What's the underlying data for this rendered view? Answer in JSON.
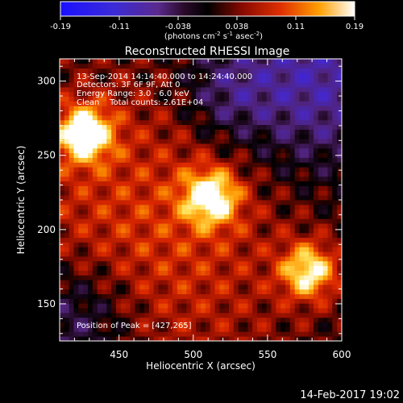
{
  "colors": {
    "background": "#000000",
    "foreground": "#ffffff"
  },
  "colorbar": {
    "ticks": [
      "-0.19",
      "-0.11",
      "-0.038",
      "0.038",
      "0.11",
      "0.19"
    ],
    "unit_label": "(photons cm",
    "unit_sup1": "-2",
    "unit_mid": " s",
    "unit_sup2": "-1",
    "unit_mid2": " asec",
    "unit_sup3": "-2",
    "unit_end": ")",
    "range": [
      -0.19,
      0.19
    ]
  },
  "chart_data": {
    "type": "heatmap",
    "title": "Reconstructed RHESSI Image",
    "xlabel": "Heliocentric X (arcsec)",
    "ylabel": "Heliocentric Y (arcsec)",
    "xlim": [
      410,
      600
    ],
    "ylim": [
      125,
      315
    ],
    "xticks": [
      450,
      500,
      550,
      600
    ],
    "yticks": [
      150,
      200,
      250,
      300
    ],
    "annotations": {
      "time_range": "13-Sep-2014 14:14:40.000 to 14:24:40.000",
      "detectors": "Detectors: 3F 6F 9F, Att 0",
      "energy": "Energy Range: 3.0 - 6.0 keV",
      "method": "Clean    Total counts: 2.61E+04",
      "peak": "Position of Peak = [427,265]"
    },
    "sources": [
      {
        "x": 427,
        "y": 265,
        "value": 0.19
      },
      {
        "x": 512,
        "y": 222,
        "value": 0.17
      },
      {
        "x": 578,
        "y": 172,
        "value": 0.16
      }
    ]
  },
  "footer": {
    "date": "14-Feb-2017 19:02"
  }
}
